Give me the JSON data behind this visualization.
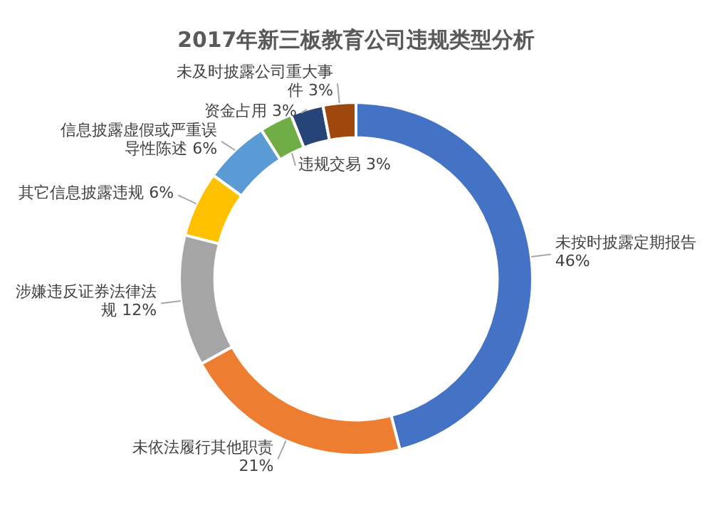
{
  "chart_data": {
    "type": "donut",
    "title": "2017年新三板教育公司违规类型分析",
    "categories": [
      "未按时披露定期报告",
      "未依法履行其他职责",
      "涉嫌违反证券法律法规",
      "其它信息披露违规",
      "信息披露虚假或严重误导性陈述",
      "违规交易",
      "资金占用",
      "未及时披露公司重大事件"
    ],
    "values": [
      46,
      21,
      12,
      6,
      6,
      3,
      3,
      3
    ],
    "value_labels": [
      "46%",
      "21%",
      "12%",
      "6%",
      "6%",
      "3%",
      "3%",
      "3%"
    ],
    "colors": [
      "#4472c4",
      "#ed7d31",
      "#a5a5a5",
      "#ffc000",
      "#5b9bd5",
      "#70ad47",
      "#264478",
      "#9e480e"
    ],
    "legend": false
  }
}
